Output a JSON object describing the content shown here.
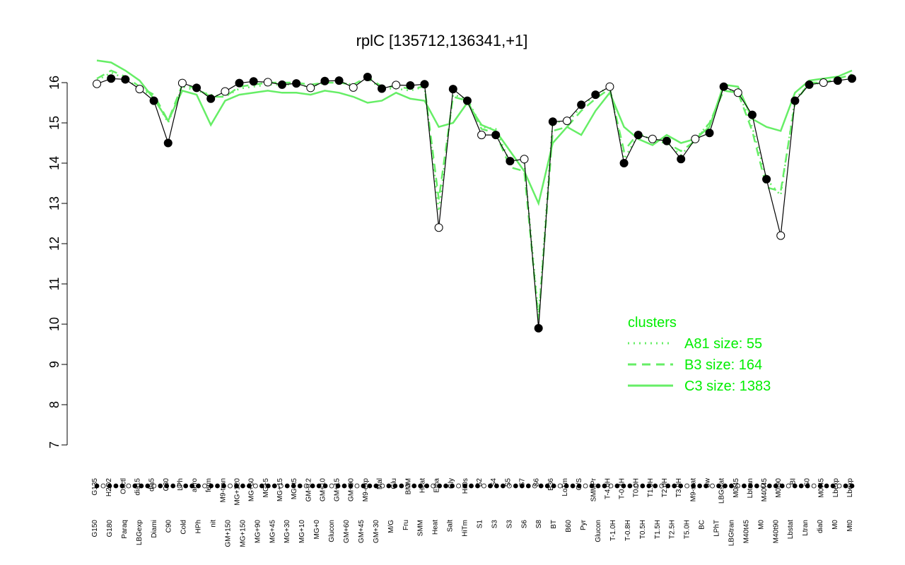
{
  "chart_data": {
    "type": "line",
    "title": "rplC [135712,136341,+1]",
    "xlabel": "",
    "ylabel": "",
    "ylim": [
      7,
      16.5
    ],
    "yticks": [
      7,
      8,
      9,
      10,
      11,
      12,
      13,
      14,
      15,
      16
    ],
    "grid": false,
    "legend_position": "bottom-right",
    "legend_title": "clusters",
    "colors": {
      "cluster_lines": "#66ee66",
      "legend_text": "#00ee00",
      "points_dark": "#000000",
      "points_light": "#ffffff"
    },
    "x_labels_top": [
      "G135",
      "H2O2",
      "Oxctl",
      "dia15",
      "dia5",
      "C30",
      "LPh",
      "aero",
      "ferm",
      "M9-tran",
      "MG+120",
      "MG+60",
      "MG+5",
      "MG+15",
      "MG+t5",
      "GM-0.2",
      "GM+10",
      "GM+15",
      "GM+90",
      "M9-exp",
      "Mal",
      "Glu",
      "BMM",
      "Heat",
      "Etha",
      "Gly",
      "HiOs",
      "S2",
      "S4",
      "S5",
      "S7",
      "S6",
      "B36",
      "LoTm",
      "G/S",
      "SMMPr",
      "T-4.0H",
      "T-0.4H",
      "T0.0H",
      "T1.0H",
      "T2.0H",
      "T3.0H",
      "M9-stat",
      "Sw",
      "LBGstat",
      "M0t45",
      "Lbtran",
      "M40t45",
      "M0t90",
      "BI",
      "S0",
      "M0t45",
      "Lbexp",
      "Lbexp"
    ],
    "x_labels_bottom": [
      "G150",
      "G180",
      "Paraq",
      "LBGexp",
      "Diami",
      "C90",
      "Cold",
      "HPh",
      "nit",
      "GM+150",
      "MG+150",
      "MG+90",
      "MG+45",
      "MG+30",
      "MG+10",
      "MG+0",
      "Glucon",
      "GM+60",
      "GM+45",
      "GM+30",
      "M/G",
      "Fru",
      "SMM",
      "Heat",
      "Salt",
      "HiTm",
      "S1",
      "S3",
      "S3",
      "S6",
      "S8",
      "BT",
      "B60",
      "Pyr",
      "Glucon",
      "T-1.0H",
      "T-0.8H",
      "T0.5H",
      "T1.5H",
      "T2.5H",
      "T5.0H",
      "BC",
      "LPhT",
      "LBGtran",
      "M40t45",
      "M0",
      "M40t90",
      "Lbstat",
      "Ltran",
      "dia0",
      "M0",
      "Mt0"
    ],
    "series": [
      {
        "name": "A81 size: 55",
        "style": "dotted",
        "values": [
          16.05,
          16.25,
          16.1,
          15.85,
          15.65,
          15.0,
          15.9,
          15.8,
          15.7,
          15.65,
          15.85,
          15.9,
          15.95,
          15.95,
          15.95,
          15.9,
          16.0,
          16.0,
          15.95,
          16.1,
          15.85,
          15.85,
          15.8,
          15.9,
          12.8,
          15.7,
          15.6,
          14.9,
          14.85,
          14.0,
          14.0,
          10.2,
          15.05,
          15.0,
          15.4,
          15.7,
          15.9,
          14.1,
          14.7,
          14.6,
          14.5,
          14.2,
          14.6,
          15.0,
          15.8,
          15.8,
          14.9,
          13.6,
          13.2,
          15.6,
          15.95,
          16.0,
          16.1,
          16.2
        ]
      },
      {
        "name": "B3 size: 164",
        "style": "dashed",
        "values": [
          16.1,
          16.3,
          16.15,
          15.9,
          15.7,
          15.05,
          15.95,
          15.85,
          15.65,
          15.65,
          15.9,
          15.95,
          16.0,
          16.0,
          16.0,
          15.95,
          16.0,
          16.0,
          15.95,
          16.15,
          15.9,
          15.9,
          15.85,
          15.9,
          13.1,
          15.65,
          15.55,
          14.85,
          14.75,
          13.9,
          13.8,
          10.1,
          14.8,
          14.9,
          15.3,
          15.6,
          15.85,
          14.3,
          14.75,
          14.55,
          14.5,
          14.3,
          14.55,
          15.0,
          15.8,
          15.75,
          14.8,
          13.4,
          13.3,
          15.5,
          16.0,
          16.0,
          16.1,
          16.2
        ]
      },
      {
        "name": "C3 size: 1383",
        "style": "solid",
        "values": [
          16.55,
          16.5,
          16.3,
          16.05,
          15.6,
          15.05,
          15.8,
          15.7,
          14.95,
          15.55,
          15.7,
          15.75,
          15.8,
          15.75,
          15.75,
          15.7,
          15.8,
          15.75,
          15.65,
          15.5,
          15.55,
          15.75,
          15.6,
          15.55,
          14.9,
          15.0,
          15.5,
          14.95,
          14.8,
          14.3,
          13.8,
          13.0,
          14.5,
          14.9,
          14.7,
          15.3,
          15.75,
          14.9,
          14.6,
          14.45,
          14.7,
          14.5,
          14.6,
          14.9,
          15.95,
          15.9,
          15.1,
          14.9,
          14.8,
          15.75,
          16.05,
          16.1,
          16.15,
          16.3
        ]
      },
      {
        "name": "observed",
        "style": "points",
        "values": [
          15.97,
          16.1,
          16.08,
          15.84,
          15.55,
          14.5,
          15.99,
          15.87,
          15.6,
          15.78,
          15.99,
          16.03,
          16.01,
          15.95,
          15.98,
          15.87,
          16.04,
          16.05,
          15.88,
          16.14,
          15.85,
          15.94,
          15.93,
          15.96,
          12.4,
          15.84,
          15.55,
          14.7,
          14.7,
          14.05,
          14.1,
          9.9,
          15.03,
          15.05,
          15.45,
          15.7,
          15.9,
          14.0,
          14.7,
          14.6,
          14.55,
          14.1,
          14.6,
          14.75,
          15.9,
          15.75,
          15.2,
          13.6,
          12.2,
          15.55,
          15.95,
          16.0,
          16.05,
          16.1
        ]
      }
    ]
  }
}
